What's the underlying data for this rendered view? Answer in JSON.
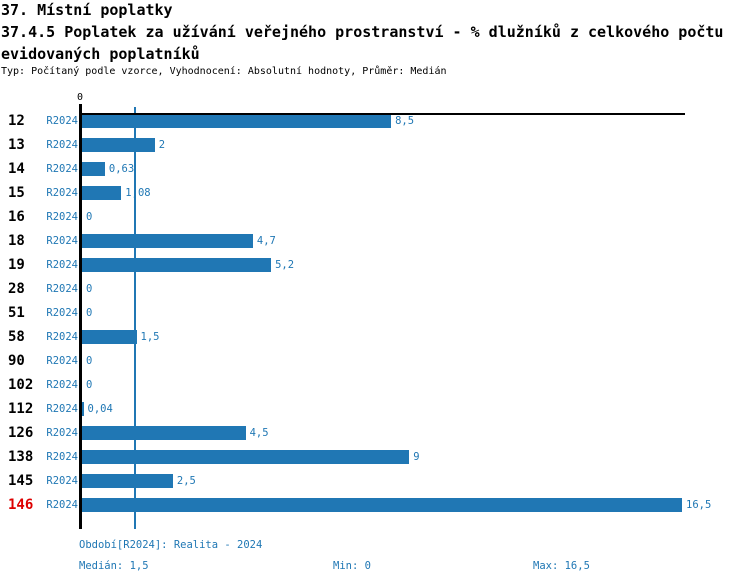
{
  "header": {
    "title": "37. Místní poplatky",
    "subtitle": "37.4.5 Poplatek za užívání veřejného prostranství - % dlužníků z celkového počtu",
    "subtitle2": "evidovaných poplatníků",
    "meta": "Typ: Počítaný podle vzorce, Vyhodnocení: Absolutní hodnoty, Průměr: Medián"
  },
  "chart_data": {
    "type": "bar",
    "orientation": "horizontal",
    "title": "37.4.5 Poplatek za užívání veřejného prostranství - % dlužníků z celkového počtu evidovaných poplatníků",
    "xlim": [
      0,
      16.5
    ],
    "axis_zero_label": "0",
    "median_value": 1.5,
    "series_name": "R2024",
    "grid": false,
    "legend": false,
    "highlighted_category": "146",
    "categories": [
      "12",
      "13",
      "14",
      "15",
      "16",
      "18",
      "19",
      "28",
      "51",
      "58",
      "90",
      "102",
      "112",
      "126",
      "138",
      "145",
      "146"
    ],
    "values": [
      8.5,
      2,
      0.63,
      1.08,
      0,
      4.7,
      5.2,
      0,
      0,
      1.5,
      0,
      0,
      0.04,
      4.5,
      9,
      2.5,
      16.5
    ],
    "rows": [
      {
        "id": "12",
        "period": "R2024",
        "value": 8.5,
        "label": "8,5",
        "highlight": false
      },
      {
        "id": "13",
        "period": "R2024",
        "value": 2,
        "label": "2",
        "highlight": false
      },
      {
        "id": "14",
        "period": "R2024",
        "value": 0.63,
        "label": "0,63",
        "highlight": false
      },
      {
        "id": "15",
        "period": "R2024",
        "value": 1.08,
        "label": "1,08",
        "highlight": false
      },
      {
        "id": "16",
        "period": "R2024",
        "value": 0,
        "label": "0",
        "highlight": false
      },
      {
        "id": "18",
        "period": "R2024",
        "value": 4.7,
        "label": "4,7",
        "highlight": false
      },
      {
        "id": "19",
        "period": "R2024",
        "value": 5.2,
        "label": "5,2",
        "highlight": false
      },
      {
        "id": "28",
        "period": "R2024",
        "value": 0,
        "label": "0",
        "highlight": false
      },
      {
        "id": "51",
        "period": "R2024",
        "value": 0,
        "label": "0",
        "highlight": false
      },
      {
        "id": "58",
        "period": "R2024",
        "value": 1.5,
        "label": "1,5",
        "highlight": false
      },
      {
        "id": "90",
        "period": "R2024",
        "value": 0,
        "label": "0",
        "highlight": false
      },
      {
        "id": "102",
        "period": "R2024",
        "value": 0,
        "label": "0",
        "highlight": false
      },
      {
        "id": "112",
        "period": "R2024",
        "value": 0.04,
        "label": "0,04",
        "highlight": false
      },
      {
        "id": "126",
        "period": "R2024",
        "value": 4.5,
        "label": "4,5",
        "highlight": false
      },
      {
        "id": "138",
        "period": "R2024",
        "value": 9,
        "label": "9",
        "highlight": false
      },
      {
        "id": "145",
        "period": "R2024",
        "value": 2.5,
        "label": "2,5",
        "highlight": false
      },
      {
        "id": "146",
        "period": "R2024",
        "value": 16.5,
        "label": "16,5",
        "highlight": true
      }
    ]
  },
  "footer": {
    "period": "Období[R2024]: Realita - 2024",
    "median": "Medián: 1,5",
    "min": "Min: 0",
    "max": "Max: 16,5"
  },
  "colors": {
    "bar": "#2077b4",
    "blue": "#1f77b4",
    "red": "#dd0000",
    "axis": "#000000"
  }
}
